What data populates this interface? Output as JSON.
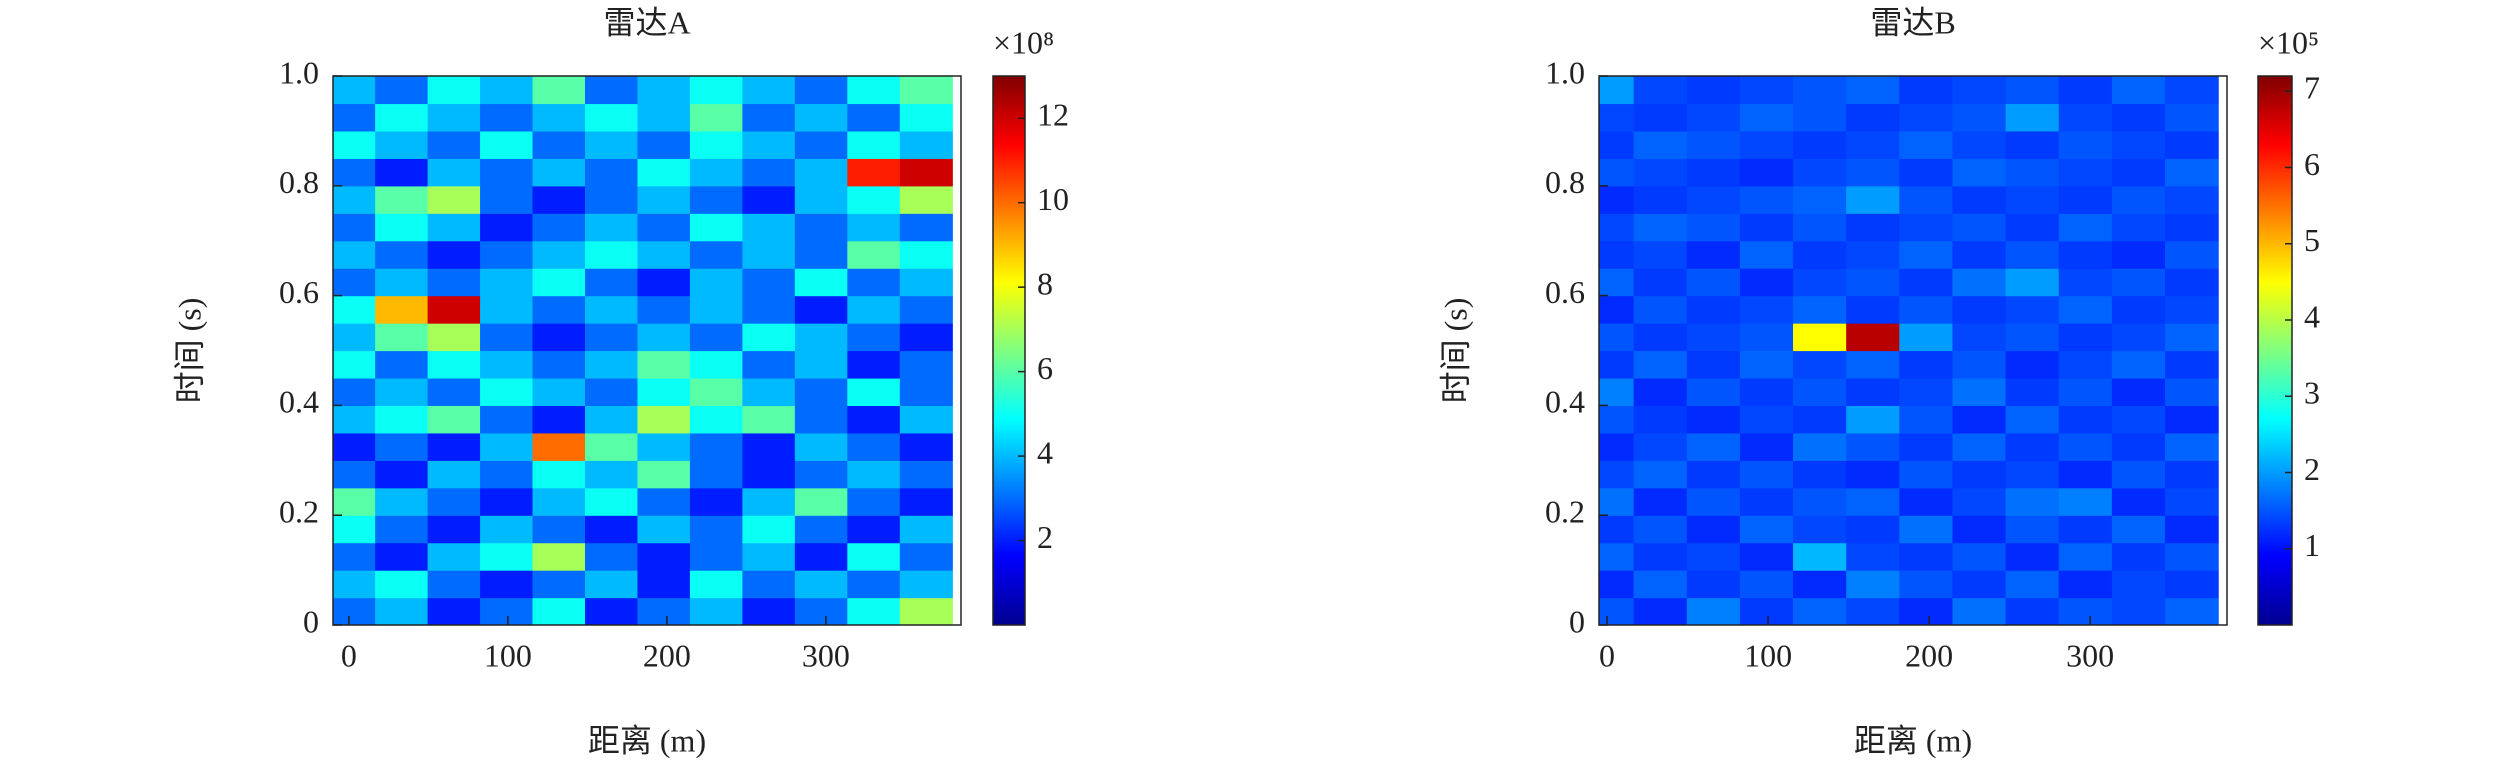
{
  "chart_data": [
    {
      "type": "heatmap",
      "title": "雷达A",
      "xlabel": "距离 (m)",
      "ylabel": "时间 (s)",
      "colormap": "jet",
      "xlim": [
        -10,
        385
      ],
      "ylim": [
        0,
        1
      ],
      "xticks": [
        0,
        100,
        200,
        300
      ],
      "yticks": [
        0,
        0.2,
        0.4,
        0.6,
        0.8,
        {
          "value": 1,
          "label": "1.0"
        }
      ],
      "clim": [
        0,
        13
      ],
      "cticks": [
        2,
        4,
        6,
        8,
        10,
        12
      ],
      "colorbar_multiplier": "×10⁸",
      "x": [
        0,
        33,
        66,
        99,
        132,
        165,
        198,
        231,
        264,
        297,
        330,
        363
      ],
      "y": [
        0.025,
        0.075,
        0.125,
        0.175,
        0.225,
        0.275,
        0.325,
        0.375,
        0.425,
        0.475,
        0.525,
        0.575,
        0.625,
        0.675,
        0.725,
        0.775,
        0.825,
        0.875,
        0.925,
        0.975
      ],
      "values": [
        [
          3,
          4,
          2,
          3,
          5,
          2,
          3,
          4,
          2,
          3,
          5,
          7
        ],
        [
          4,
          5,
          3,
          2,
          3,
          4,
          2,
          5,
          3,
          4,
          3,
          4
        ],
        [
          3,
          2,
          4,
          5,
          7,
          3,
          2,
          3,
          4,
          2,
          5,
          3
        ],
        [
          5,
          3,
          2,
          4,
          3,
          2,
          4,
          3,
          5,
          3,
          2,
          4
        ],
        [
          6,
          4,
          3,
          2,
          4,
          5,
          3,
          2,
          4,
          6,
          3,
          2
        ],
        [
          3,
          2,
          4,
          3,
          5,
          4,
          6,
          3,
          2,
          3,
          4,
          3
        ],
        [
          2,
          3,
          2,
          4,
          10,
          6,
          4,
          3,
          2,
          4,
          3,
          2
        ],
        [
          4,
          5,
          6,
          3,
          2,
          4,
          7,
          5,
          6,
          3,
          2,
          4
        ],
        [
          3,
          4,
          3,
          5,
          4,
          3,
          5,
          6,
          4,
          3,
          5,
          3
        ],
        [
          5,
          3,
          5,
          4,
          3,
          4,
          6,
          5,
          3,
          4,
          2,
          3
        ],
        [
          4,
          6,
          7,
          3,
          2,
          3,
          4,
          3,
          5,
          4,
          3,
          2
        ],
        [
          5,
          9,
          12,
          4,
          3,
          4,
          3,
          4,
          3,
          2,
          4,
          3
        ],
        [
          3,
          4,
          3,
          4,
          5,
          3,
          2,
          4,
          3,
          5,
          3,
          4
        ],
        [
          4,
          3,
          2,
          3,
          4,
          5,
          4,
          3,
          4,
          3,
          6,
          5
        ],
        [
          3,
          5,
          4,
          2,
          3,
          4,
          3,
          5,
          4,
          3,
          4,
          3
        ],
        [
          4,
          6,
          7,
          3,
          2,
          3,
          4,
          3,
          2,
          4,
          5,
          7
        ],
        [
          3,
          2,
          4,
          3,
          4,
          3,
          5,
          4,
          3,
          4,
          11,
          12
        ],
        [
          5,
          4,
          3,
          5,
          3,
          4,
          3,
          5,
          4,
          3,
          5,
          4
        ],
        [
          3,
          5,
          4,
          3,
          4,
          5,
          4,
          6,
          3,
          4,
          3,
          5
        ],
        [
          4,
          3,
          5,
          4,
          6,
          3,
          4,
          5,
          4,
          3,
          5,
          6
        ]
      ]
    },
    {
      "type": "heatmap",
      "title": "雷达B",
      "xlabel": "距离 (m)",
      "ylabel": "时间 (s)",
      "colormap": "jet",
      "xlim": [
        -5,
        385
      ],
      "ylim": [
        0,
        1
      ],
      "xticks": [
        0,
        100,
        200,
        300
      ],
      "yticks": [
        0,
        0.2,
        0.4,
        0.6,
        0.8,
        {
          "value": 1,
          "label": "1.0"
        }
      ],
      "clim": [
        0,
        7.2
      ],
      "cticks": [
        1,
        2,
        3,
        4,
        5,
        6,
        7
      ],
      "colorbar_multiplier": "×10⁵",
      "x": [
        0,
        33,
        66,
        99,
        132,
        165,
        198,
        231,
        264,
        297,
        330,
        363
      ],
      "y": [
        0.025,
        0.075,
        0.125,
        0.175,
        0.225,
        0.275,
        0.325,
        0.375,
        0.425,
        0.475,
        0.525,
        0.575,
        0.625,
        0.675,
        0.725,
        0.775,
        0.825,
        0.875,
        0.925,
        0.975
      ],
      "values": [
        [
          1.5,
          1.2,
          1.8,
          1.3,
          1.6,
          1.4,
          1.2,
          1.7,
          1.3,
          1.5,
          1.4,
          1.6
        ],
        [
          1.2,
          1.6,
          1.3,
          1.5,
          1.2,
          1.8,
          1.5,
          1.3,
          1.6,
          1.2,
          1.4,
          1.3
        ],
        [
          1.6,
          1.3,
          1.4,
          1.2,
          2.2,
          1.4,
          1.3,
          1.5,
          1.2,
          1.6,
          1.3,
          1.5
        ],
        [
          1.3,
          1.5,
          1.2,
          1.6,
          1.4,
          1.3,
          1.7,
          1.2,
          1.5,
          1.3,
          1.6,
          1.2
        ],
        [
          1.7,
          1.2,
          1.5,
          1.3,
          1.5,
          1.6,
          1.2,
          1.4,
          1.7,
          1.8,
          1.2,
          1.4
        ],
        [
          1.4,
          1.6,
          1.3,
          1.5,
          1.3,
          1.2,
          1.5,
          1.3,
          1.4,
          1.2,
          1.5,
          1.3
        ],
        [
          1.2,
          1.4,
          1.6,
          1.2,
          1.7,
          1.5,
          1.3,
          1.6,
          1.3,
          1.5,
          1.3,
          1.6
        ],
        [
          1.5,
          1.3,
          1.2,
          1.4,
          1.3,
          2.0,
          1.5,
          1.2,
          1.6,
          1.3,
          1.4,
          1.2
        ],
        [
          1.8,
          1.2,
          1.5,
          1.3,
          1.5,
          1.3,
          1.4,
          1.7,
          1.3,
          1.5,
          1.2,
          1.5
        ],
        [
          1.3,
          1.6,
          1.3,
          1.6,
          1.4,
          1.6,
          1.3,
          1.5,
          1.2,
          1.4,
          1.6,
          1.3
        ],
        [
          1.5,
          1.3,
          1.4,
          1.5,
          4.5,
          6.8,
          2.0,
          1.4,
          1.5,
          1.3,
          1.4,
          1.6
        ],
        [
          1.2,
          1.5,
          1.3,
          1.4,
          1.6,
          1.3,
          1.5,
          1.3,
          1.4,
          1.6,
          1.3,
          1.4
        ],
        [
          1.6,
          1.3,
          1.5,
          1.2,
          1.4,
          1.5,
          1.3,
          1.7,
          2.0,
          1.4,
          1.5,
          1.3
        ],
        [
          1.3,
          1.4,
          1.2,
          1.6,
          1.3,
          1.4,
          1.6,
          1.3,
          1.5,
          1.3,
          1.2,
          1.5
        ],
        [
          1.4,
          1.6,
          1.5,
          1.3,
          1.5,
          1.3,
          1.4,
          1.5,
          1.3,
          1.6,
          1.4,
          1.3
        ],
        [
          1.2,
          1.3,
          1.4,
          1.5,
          1.6,
          2.0,
          1.5,
          1.3,
          1.4,
          1.3,
          1.5,
          1.4
        ],
        [
          1.5,
          1.4,
          1.3,
          1.2,
          1.4,
          1.5,
          1.3,
          1.6,
          1.5,
          1.4,
          1.3,
          1.6
        ],
        [
          1.3,
          1.6,
          1.5,
          1.4,
          1.3,
          1.4,
          1.6,
          1.4,
          1.3,
          1.5,
          1.4,
          1.3
        ],
        [
          1.4,
          1.3,
          1.4,
          1.6,
          1.5,
          1.3,
          1.4,
          1.5,
          2.0,
          1.4,
          1.3,
          1.5
        ],
        [
          2.0,
          1.4,
          1.3,
          1.4,
          1.5,
          1.6,
          1.3,
          1.4,
          1.5,
          1.3,
          1.6,
          1.4
        ]
      ]
    }
  ]
}
